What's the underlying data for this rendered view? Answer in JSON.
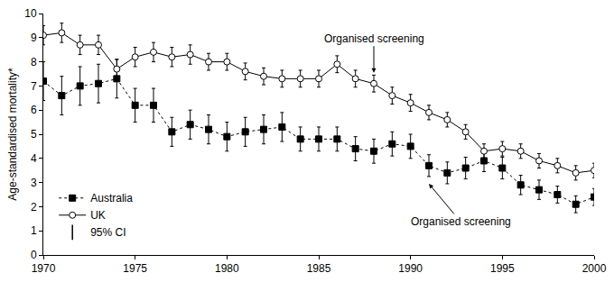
{
  "chart_data": {
    "type": "line",
    "y_label": "Age-standardised mortality*",
    "x": [
      1970,
      1971,
      1972,
      1973,
      1974,
      1975,
      1976,
      1977,
      1978,
      1979,
      1980,
      1981,
      1982,
      1983,
      1984,
      1985,
      1986,
      1987,
      1988,
      1989,
      1990,
      1991,
      1992,
      1993,
      1994,
      1995,
      1996,
      1997,
      1998,
      1999,
      2000
    ],
    "series": [
      {
        "name": "Australia",
        "color": "#000000",
        "marker": "square",
        "line_style": "dot",
        "values": [
          7.2,
          6.6,
          7.0,
          7.1,
          7.3,
          6.2,
          6.2,
          5.1,
          5.4,
          5.2,
          4.9,
          5.1,
          5.2,
          5.3,
          4.8,
          4.8,
          4.8,
          4.4,
          4.3,
          4.6,
          4.5,
          3.7,
          3.4,
          3.6,
          3.9,
          3.6,
          2.9,
          2.7,
          2.5,
          2.1,
          2.4
        ],
        "error": [
          0.8,
          0.8,
          0.8,
          0.8,
          0.8,
          0.7,
          0.7,
          0.6,
          0.6,
          0.6,
          0.6,
          0.6,
          0.6,
          0.6,
          0.5,
          0.5,
          0.5,
          0.5,
          0.5,
          0.5,
          0.5,
          0.45,
          0.45,
          0.45,
          0.45,
          0.45,
          0.4,
          0.4,
          0.35,
          0.35,
          0.35
        ]
      },
      {
        "name": "UK",
        "color": "#000000",
        "marker": "circle-open",
        "line_style": "solid",
        "values": [
          9.1,
          9.2,
          8.7,
          8.7,
          7.7,
          8.2,
          8.4,
          8.2,
          8.3,
          8.0,
          8.0,
          7.6,
          7.4,
          7.3,
          7.3,
          7.3,
          7.9,
          7.3,
          7.1,
          6.6,
          6.3,
          5.9,
          5.6,
          5.1,
          4.3,
          4.4,
          4.3,
          3.9,
          3.7,
          3.4,
          3.5
        ],
        "error": [
          0.4,
          0.4,
          0.4,
          0.4,
          0.4,
          0.4,
          0.4,
          0.4,
          0.4,
          0.35,
          0.35,
          0.35,
          0.35,
          0.35,
          0.35,
          0.35,
          0.35,
          0.35,
          0.35,
          0.35,
          0.35,
          0.3,
          0.3,
          0.3,
          0.3,
          0.3,
          0.3,
          0.3,
          0.3,
          0.3,
          0.3
        ]
      }
    ],
    "error_name": "95% CI",
    "annotations": [
      {
        "text": "Organised screening",
        "x": 1988,
        "y": 7.55
      },
      {
        "text": "Organised screening",
        "x": 1991,
        "y": 2.95
      }
    ],
    "xlim": [
      1970,
      2000
    ],
    "xticks": [
      1970,
      1975,
      1980,
      1985,
      1990,
      1995,
      2000
    ],
    "ylim": [
      0,
      10
    ],
    "yticks": [
      0,
      1,
      2,
      3,
      4,
      5,
      6,
      7,
      8,
      9,
      10
    ],
    "grid": false,
    "legend": "lower left"
  }
}
